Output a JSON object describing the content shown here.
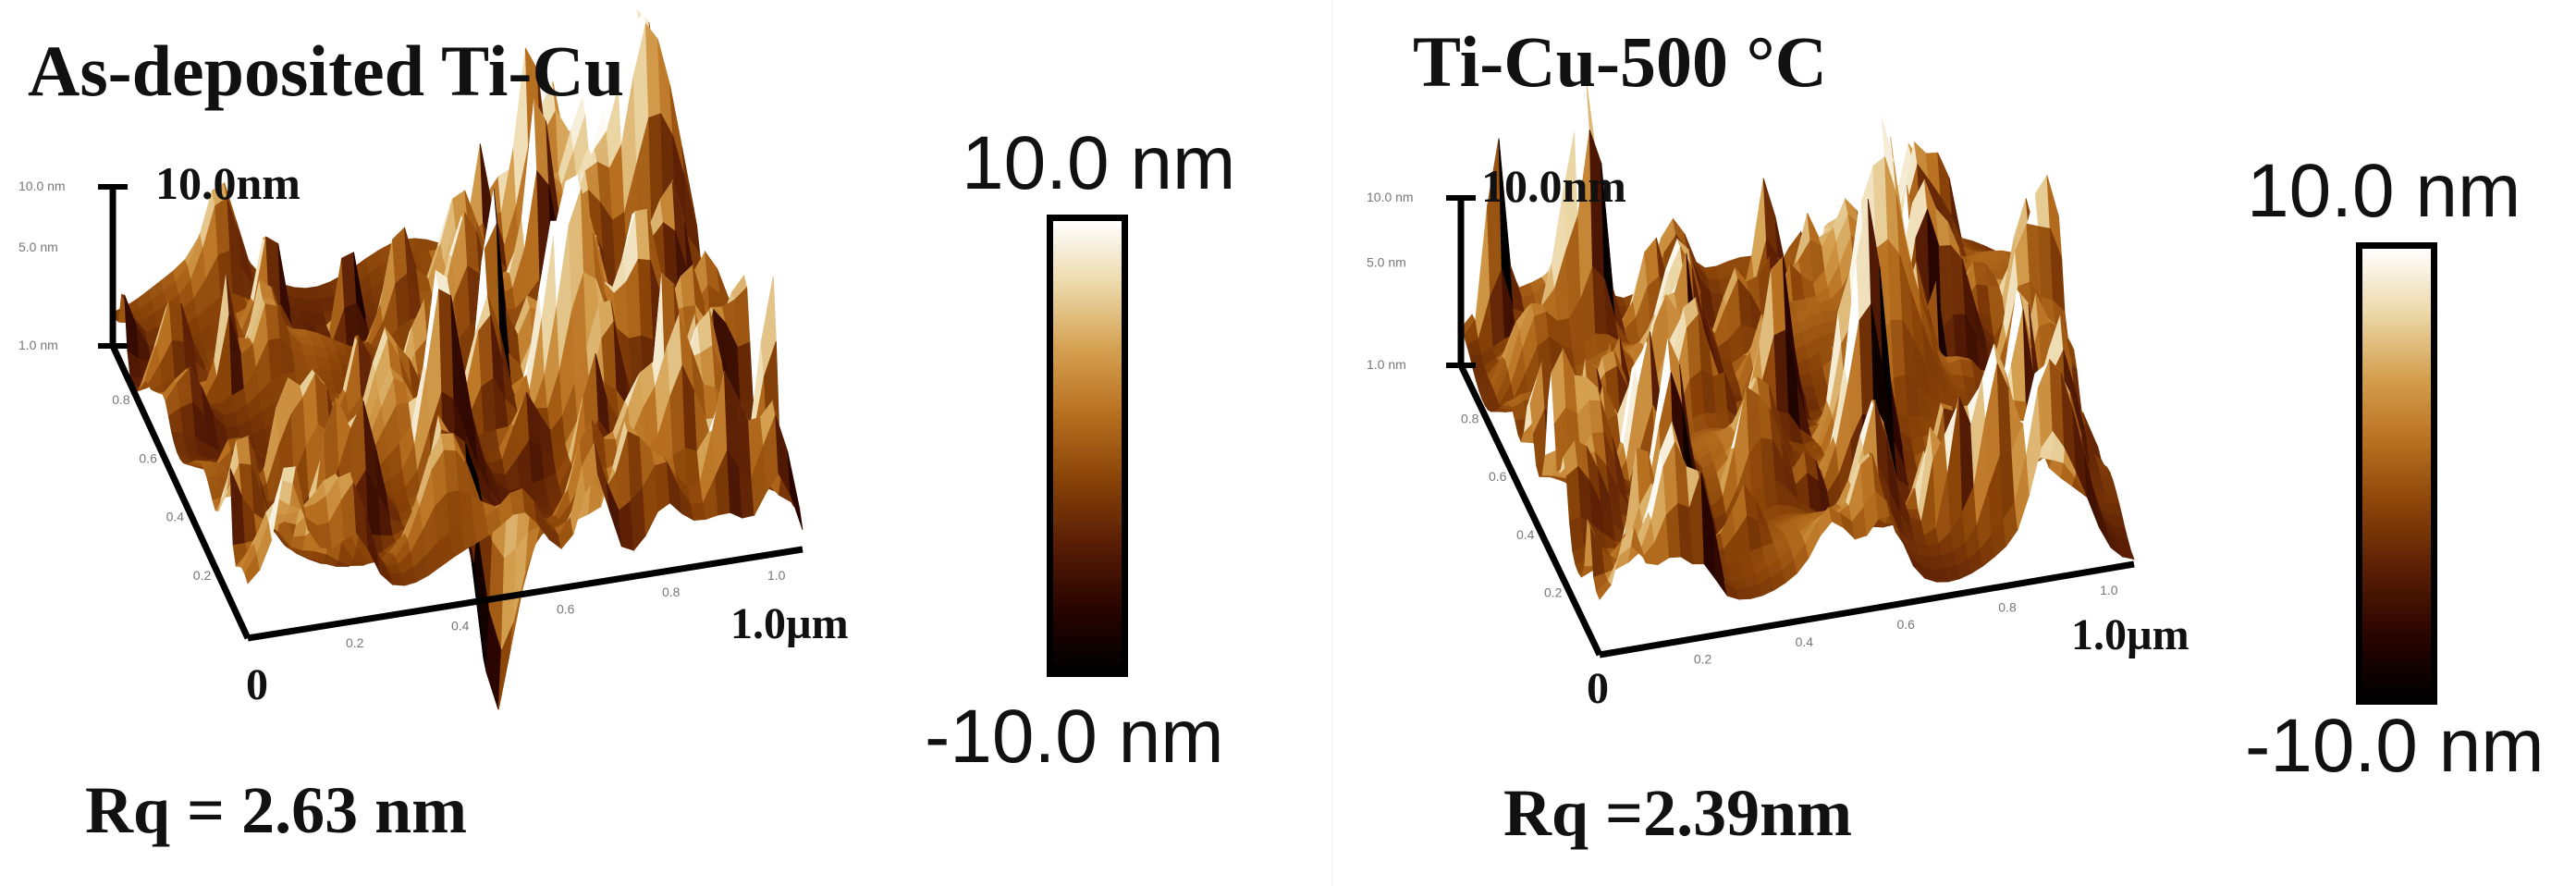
{
  "colors": {
    "colormap": [
      "#000000",
      "#2a0500",
      "#5a1e05",
      "#8a4408",
      "#b87020",
      "#d4a050",
      "#ecd8a8",
      "#ffffff"
    ],
    "axis": "#000000",
    "tick_text": "#777777"
  },
  "panels": [
    {
      "title": "As-deposited Ti-Cu",
      "z_label": "10.0nm",
      "x_end_label": "1.0µm",
      "origin_label": "0",
      "rq": "Rq = 2.63 nm",
      "scale_max": "10.0 nm",
      "scale_min": "-10.0 nm",
      "z_ticks": [
        "10.0 nm",
        "5.0 nm",
        "1.0 nm"
      ],
      "x_ticks": [
        "0.2",
        "0.4",
        "0.6",
        "0.8",
        "1.0"
      ],
      "y_ticks": [
        "0.8",
        "0.6",
        "0.4",
        "0.2"
      ],
      "rq_value_nm": 2.63,
      "height_range_nm": [
        -10.0,
        10.0
      ],
      "scan_size_um": 1.0
    },
    {
      "title": "Ti-Cu-500 °C",
      "z_label": "10.0nm",
      "x_end_label": "1.0µm",
      "origin_label": "0",
      "rq": "Rq =2.39nm",
      "scale_max": "10.0 nm",
      "scale_min": "-10.0 nm",
      "z_ticks": [
        "10.0 nm",
        "5.0 nm",
        "1.0 nm"
      ],
      "x_ticks": [
        "0.2",
        "0.4",
        "0.6",
        "0.8",
        "1.0"
      ],
      "y_ticks": [
        "0.8",
        "0.6",
        "0.4",
        "0.2"
      ],
      "rq_value_nm": 2.39,
      "height_range_nm": [
        -10.0,
        10.0
      ],
      "scan_size_um": 1.0
    }
  ]
}
